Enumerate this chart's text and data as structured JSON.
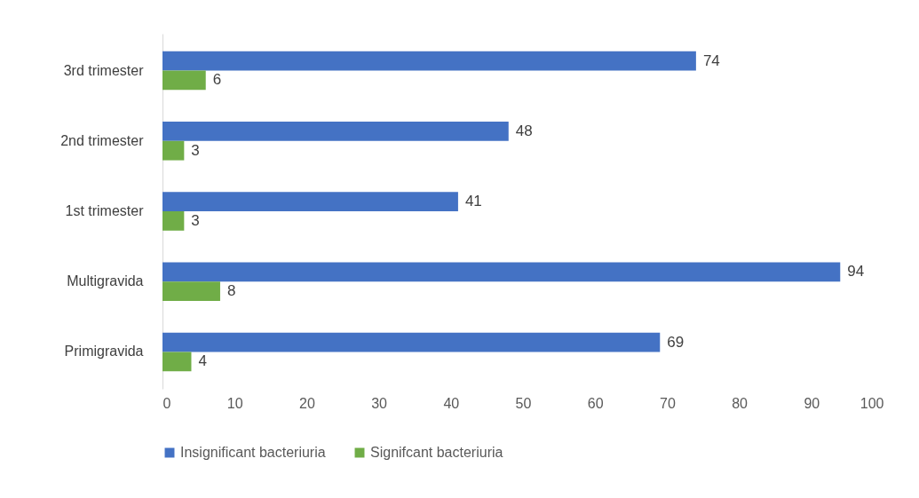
{
  "chart_data": {
    "type": "bar",
    "orientation": "horizontal",
    "categories": [
      "3rd trimester",
      "2nd trimester",
      "1st trimester",
      "Multigravida",
      "Primigravida"
    ],
    "series": [
      {
        "name": "Insignificant bacteriuria",
        "color": "#4472c4",
        "values": [
          74,
          48,
          41,
          94,
          69
        ]
      },
      {
        "name": "Signifcant bacteriuria",
        "color": "#70ad47",
        "values": [
          6,
          3,
          3,
          8,
          4
        ]
      }
    ],
    "xlim": [
      0,
      100
    ],
    "xticks": [
      0,
      10,
      20,
      30,
      40,
      50,
      60,
      70,
      80,
      90,
      100
    ],
    "data_labels": true,
    "legend": "bottom"
  }
}
